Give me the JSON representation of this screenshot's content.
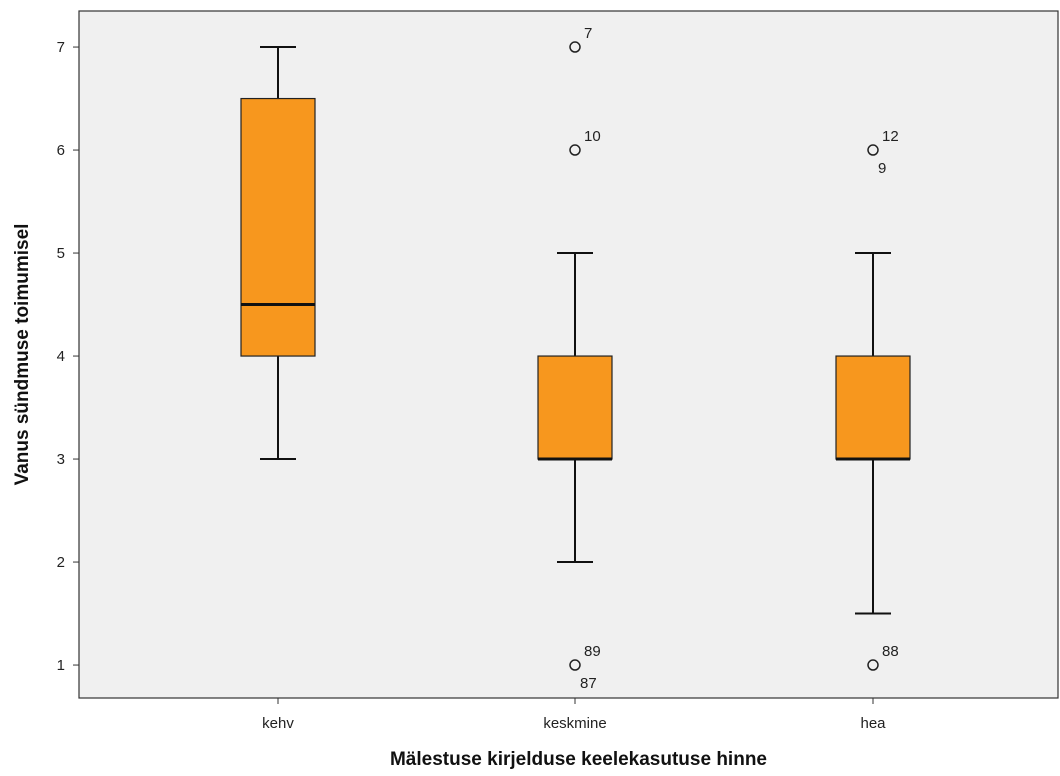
{
  "colors": {
    "plot_background": "#f0f0f0",
    "box_fill": "#f7971e",
    "line": "#111111",
    "page_background": "#ffffff"
  },
  "chart_data": {
    "type": "boxplot",
    "title": "",
    "xlabel": "Mälestuse kirjelduse keelekasutuse hinne",
    "ylabel": "Vanus sündmuse toimumisel",
    "ylim": [
      0.68,
      7.35
    ],
    "yticks": [
      1,
      2,
      3,
      4,
      5,
      6,
      7
    ],
    "grid": false,
    "categories": [
      "kehv",
      "keskmine",
      "hea"
    ],
    "boxes": [
      {
        "category": "kehv",
        "whisker_low": 3,
        "q1": 4,
        "median": 4.5,
        "q3": 6.5,
        "whisker_high": 7,
        "outliers": []
      },
      {
        "category": "keskmine",
        "whisker_low": 2,
        "q1": 3,
        "median": 3,
        "q3": 4,
        "whisker_high": 5,
        "outliers": [
          {
            "value": 7,
            "labels": [
              "7"
            ]
          },
          {
            "value": 6,
            "labels": [
              "10"
            ]
          },
          {
            "value": 1,
            "labels": [
              "89",
              "87"
            ]
          }
        ]
      },
      {
        "category": "hea",
        "whisker_low": 1.5,
        "q1": 3,
        "median": 3,
        "q3": 4,
        "whisker_high": 5,
        "outliers": [
          {
            "value": 6,
            "labels": [
              "12",
              "9"
            ]
          },
          {
            "value": 1,
            "labels": [
              "88"
            ]
          }
        ]
      }
    ]
  }
}
